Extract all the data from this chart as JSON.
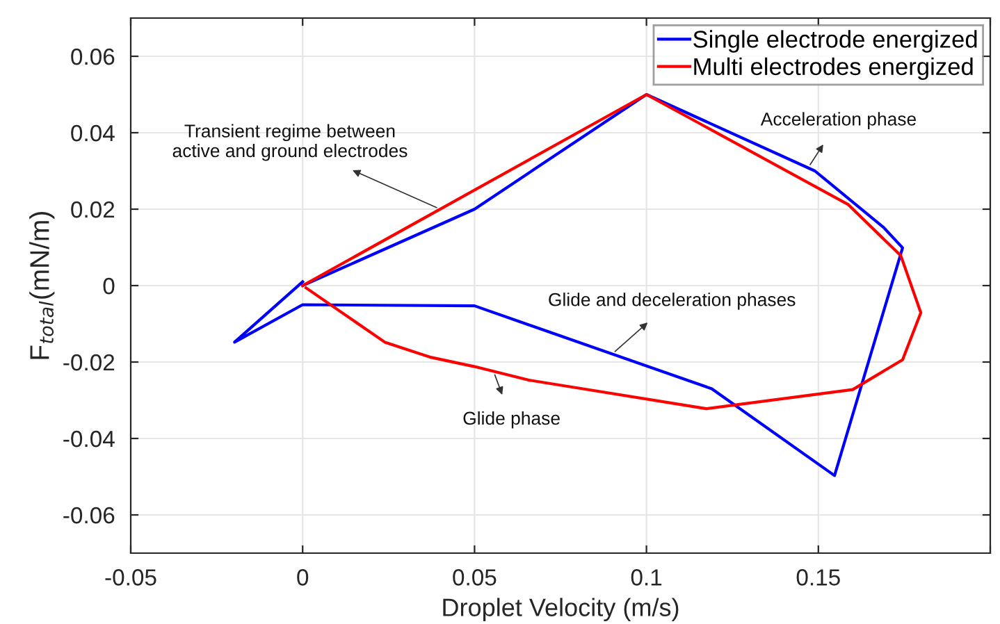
{
  "chart_data": {
    "type": "line",
    "xlabel": "Droplet Velocity (m/s)",
    "ylabel": "F$_{total}$(mN/m)",
    "xlim": [
      -0.05,
      0.2
    ],
    "xticks": [
      -0.05,
      0,
      0.05,
      0.1,
      0.15,
      {
        "value": 0.2,
        "label": null
      }
    ],
    "ylim": [
      -0.07,
      0.07
    ],
    "yticks": [
      -0.06,
      -0.04,
      -0.02,
      0,
      0.02,
      0.04,
      0.06
    ],
    "grid": true,
    "legend": "top right",
    "series": [
      {
        "name": "Single electrode energized",
        "color": "#0000ff",
        "x": [
          0,
          0.05,
          0.1,
          0.149,
          0.169,
          0.1745,
          0.1547,
          0.119,
          0.05,
          0,
          -0.0198,
          0
        ],
        "values": [
          0,
          0.02,
          0.05,
          0.03,
          0.0152,
          0.0099,
          -0.0497,
          -0.027,
          -0.0053,
          -0.005,
          -0.0148,
          0.001
        ]
      },
      {
        "name": "Multi electrodes energized",
        "color": "#ff0000",
        "x": [
          0,
          0.1,
          0.1587,
          0.174,
          0.1798,
          0.1745,
          0.16,
          0.1174,
          0.0656,
          0.05,
          0.037,
          0.0239,
          0.001
        ],
        "values": [
          0,
          0.05,
          0.0212,
          0.0078,
          -0.0071,
          -0.0194,
          -0.0272,
          -0.0322,
          -0.0247,
          -0.0212,
          -0.0187,
          -0.0148,
          -0.0006
        ]
      }
    ],
    "annotations": [
      {
        "text": "Transient regime between\nactive and ground electrodes",
        "x": 0.04,
        "y": 0.02
      },
      {
        "text": "Acceleration phase",
        "x": 0.147,
        "y": 0.0308
      },
      {
        "text": "Glide and deceleration phases",
        "x": 0.09,
        "y": -0.0179
      },
      {
        "text": "Glide phase",
        "x": 0.0555,
        "y": -0.0224
      }
    ]
  }
}
